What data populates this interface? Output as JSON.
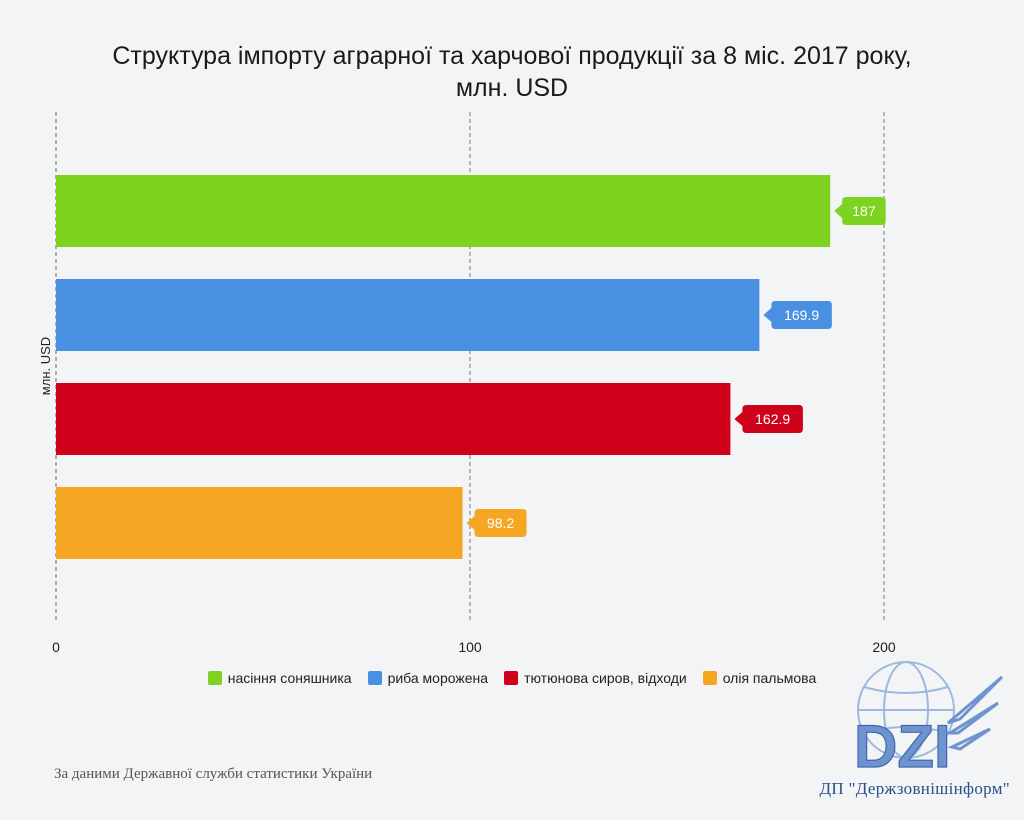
{
  "chart_data": {
    "type": "bar",
    "orientation": "horizontal",
    "title_line1": "Структура імпорту аграрної та харчової продукції за 8 міс. 2017 року,",
    "title_line2": "млн. USD",
    "ylabel": "млн. USD",
    "xlabel": "",
    "xlim": [
      0,
      200
    ],
    "x_ticks": [
      0,
      100,
      200
    ],
    "grid": true,
    "legend_position": "bottom",
    "categories": [
      "насіння соняшника",
      "риба морожена",
      "тютюнова сиров, відходи",
      "олія пальмова"
    ],
    "values": [
      187,
      169.9,
      162.9,
      98.2
    ],
    "value_labels": [
      "187",
      "169.9",
      "162.9",
      "98.2"
    ],
    "colors": [
      "#7ed321",
      "#4a90e2",
      "#d0021b",
      "#f5a623"
    ]
  },
  "footer": {
    "source": "За даними Державної служби статистики України",
    "publisher": "ДП \"Держзовнішінформ\""
  },
  "logo": {
    "text": "DZI",
    "icon": "globe-wing-logo"
  }
}
